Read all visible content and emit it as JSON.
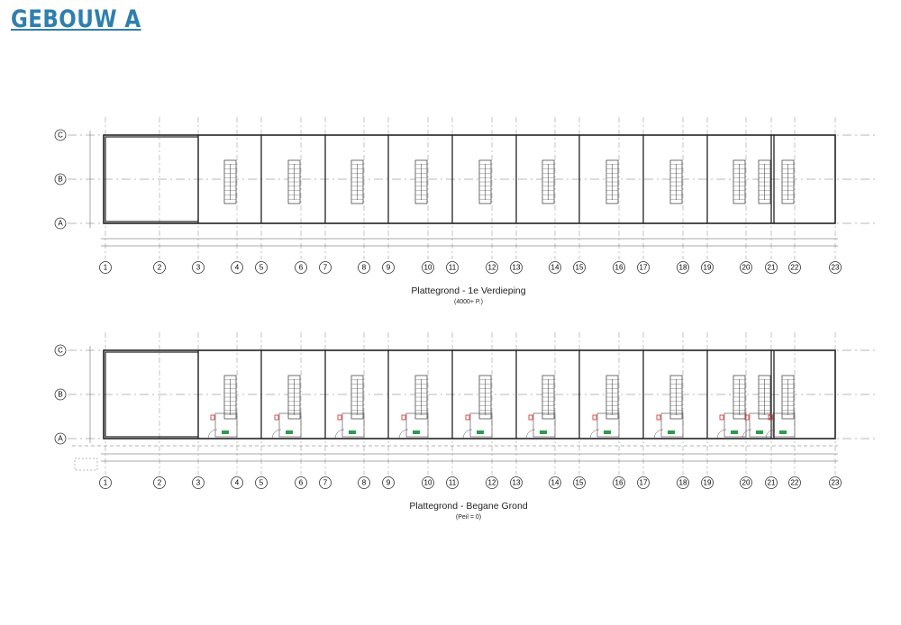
{
  "header": {
    "title": "GEBOUW A"
  },
  "plans": [
    {
      "title": "Plattegrond - 1e Verdieping",
      "subtitle": "(4000+ P.)",
      "rows": [
        "C",
        "B",
        "A"
      ],
      "columns": [
        "1",
        "2",
        "3",
        "4",
        "5",
        "6",
        "7",
        "8",
        "9",
        "10",
        "11",
        "12",
        "13",
        "14",
        "15",
        "16",
        "17",
        "18",
        "19",
        "20",
        "21",
        "22",
        "23"
      ]
    },
    {
      "title": "Plattegrond - Begane Grond",
      "subtitle": "(Peil = 0)",
      "rows": [
        "C",
        "B",
        "A"
      ],
      "columns": [
        "1",
        "2",
        "3",
        "4",
        "5",
        "6",
        "7",
        "8",
        "9",
        "10",
        "11",
        "12",
        "13",
        "14",
        "15",
        "16",
        "17",
        "18",
        "19",
        "20",
        "21",
        "22",
        "23"
      ]
    }
  ]
}
